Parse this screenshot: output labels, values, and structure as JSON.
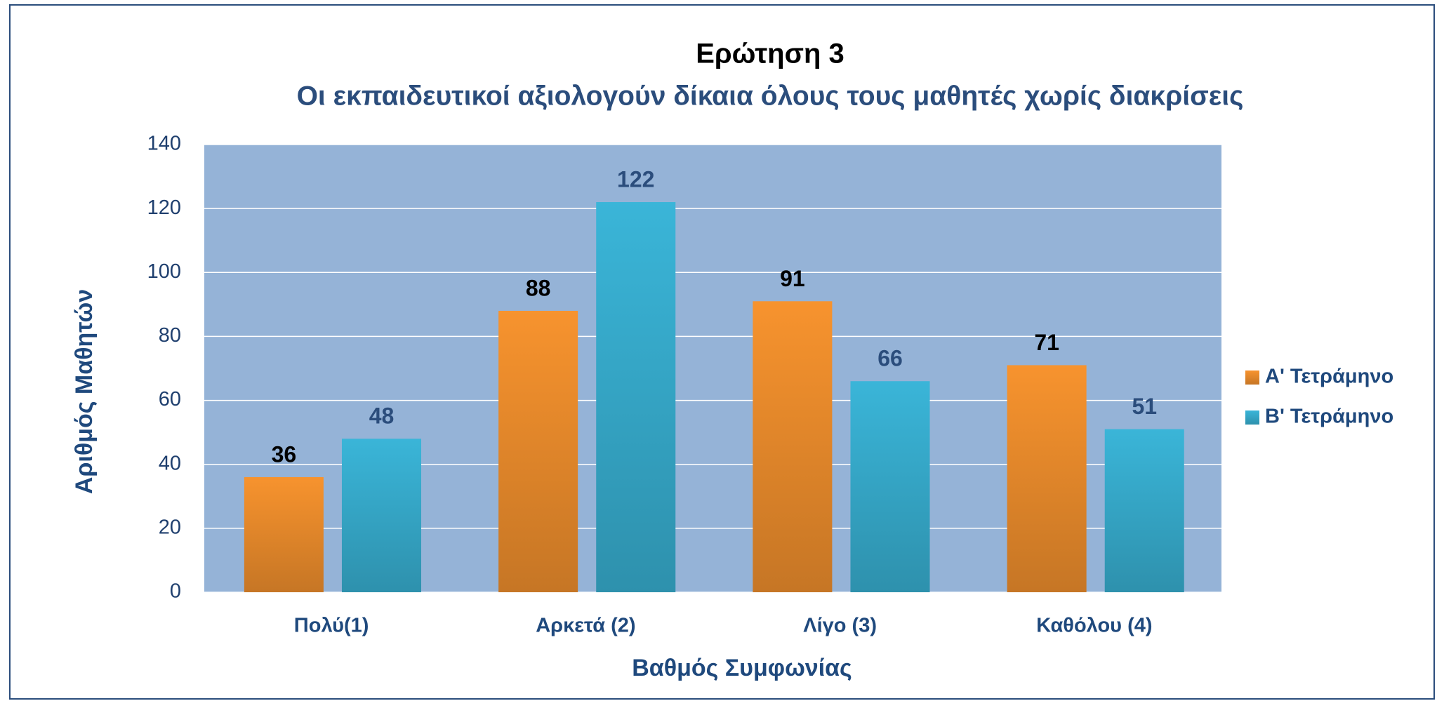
{
  "chart_data": {
    "type": "bar",
    "title": "Ερώτηση 3",
    "subtitle": "Οι εκπαιδευτικοί αξιολογούν δίκαια όλους τους μαθητές χωρίς διακρίσεις",
    "x_label": "Βαθμός Συμφωνίας",
    "y_label": "Αριθμός Μαθητών",
    "categories": [
      "Πολύ(1)",
      "Αρκετά (2)",
      "Λίγο (3)",
      "Καθόλου (4)"
    ],
    "series": [
      {
        "name": "Α' Τετράμηνο",
        "color": "#f7932e",
        "values": [
          36,
          88,
          91,
          71
        ]
      },
      {
        "name": "Β' Τετράμηνο",
        "color": "#3ab5d8",
        "values": [
          48,
          122,
          66,
          51
        ]
      }
    ],
    "ylim": [
      0,
      140
    ],
    "yticks": [
      0,
      20,
      40,
      60,
      80,
      100,
      120,
      140
    ],
    "grid": true,
    "legend": "right"
  }
}
